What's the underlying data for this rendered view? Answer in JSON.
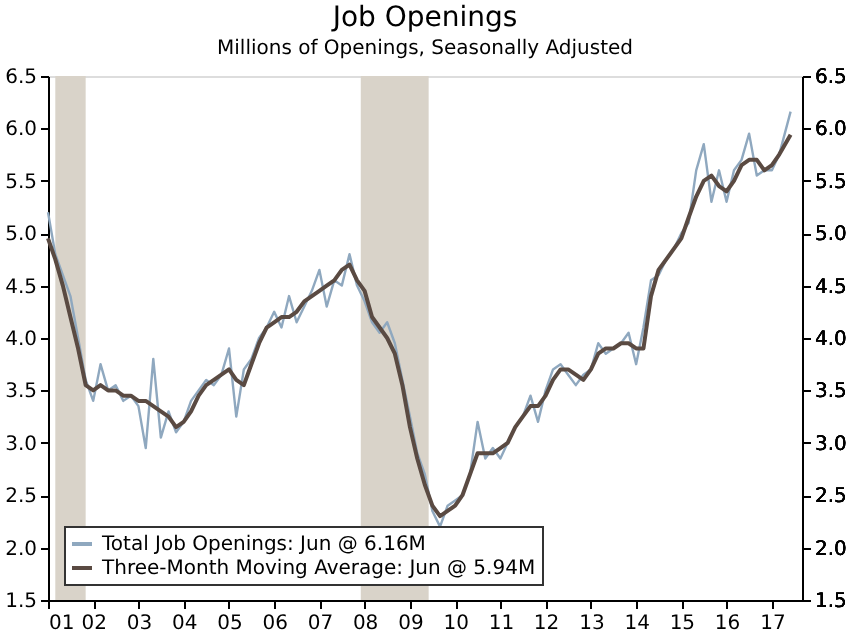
{
  "chart_data": {
    "type": "line",
    "title": "Job Openings",
    "subtitle": "Millions of Openings, Seasonally Adjusted",
    "x": [
      "2001-01",
      "2001-03",
      "2001-05",
      "2001-07",
      "2001-09",
      "2001-11",
      "2002-01",
      "2002-03",
      "2002-05",
      "2002-07",
      "2002-09",
      "2002-11",
      "2003-01",
      "2003-03",
      "2003-05",
      "2003-07",
      "2003-09",
      "2003-11",
      "2004-01",
      "2004-03",
      "2004-05",
      "2004-07",
      "2004-09",
      "2004-11",
      "2005-01",
      "2005-03",
      "2005-05",
      "2005-07",
      "2005-09",
      "2005-11",
      "2006-01",
      "2006-03",
      "2006-05",
      "2006-07",
      "2006-09",
      "2006-11",
      "2007-01",
      "2007-03",
      "2007-05",
      "2007-07",
      "2007-09",
      "2007-11",
      "2008-01",
      "2008-03",
      "2008-05",
      "2008-07",
      "2008-09",
      "2008-11",
      "2009-01",
      "2009-03",
      "2009-05",
      "2009-07",
      "2009-09",
      "2009-11",
      "2010-01",
      "2010-03",
      "2010-05",
      "2010-07",
      "2010-09",
      "2010-11",
      "2011-01",
      "2011-03",
      "2011-05",
      "2011-07",
      "2011-09",
      "2011-11",
      "2012-01",
      "2012-03",
      "2012-05",
      "2012-07",
      "2012-09",
      "2012-11",
      "2013-01",
      "2013-03",
      "2013-05",
      "2013-07",
      "2013-09",
      "2013-11",
      "2014-01",
      "2014-03",
      "2014-05",
      "2014-07",
      "2014-09",
      "2014-11",
      "2015-01",
      "2015-03",
      "2015-05",
      "2015-07",
      "2015-09",
      "2015-11",
      "2016-01",
      "2016-03",
      "2016-05",
      "2016-07",
      "2016-09",
      "2016-11",
      "2017-01",
      "2017-03",
      "2017-06"
    ],
    "series": [
      {
        "name": "Total Job Openings: Jun @ 6.16M",
        "color": "#8fa8bf",
        "values": [
          5.2,
          4.8,
          4.6,
          4.4,
          4.0,
          3.6,
          3.4,
          3.75,
          3.5,
          3.55,
          3.4,
          3.45,
          3.35,
          2.95,
          3.8,
          3.05,
          3.3,
          3.1,
          3.2,
          3.4,
          3.5,
          3.6,
          3.55,
          3.65,
          3.9,
          3.25,
          3.7,
          3.8,
          4.0,
          4.1,
          4.25,
          4.1,
          4.4,
          4.15,
          4.3,
          4.45,
          4.65,
          4.3,
          4.55,
          4.5,
          4.8,
          4.5,
          4.35,
          4.15,
          4.05,
          4.15,
          3.95,
          3.6,
          3.25,
          2.9,
          2.7,
          2.35,
          2.2,
          2.4,
          2.45,
          2.5,
          2.7,
          3.2,
          2.85,
          2.95,
          2.85,
          3.0,
          3.15,
          3.25,
          3.45,
          3.2,
          3.5,
          3.7,
          3.75,
          3.65,
          3.55,
          3.65,
          3.7,
          3.95,
          3.85,
          3.9,
          3.95,
          4.05,
          3.75,
          4.1,
          4.55,
          4.6,
          4.75,
          4.85,
          5.0,
          5.1,
          5.6,
          5.85,
          5.3,
          5.6,
          5.3,
          5.6,
          5.7,
          5.95,
          5.55,
          5.6,
          5.6,
          5.75,
          6.16
        ]
      },
      {
        "name": "Three-Month Moving Average: Jun @ 5.94M",
        "color": "#5a4a42",
        "values": [
          4.95,
          4.75,
          4.5,
          4.2,
          3.9,
          3.55,
          3.5,
          3.55,
          3.5,
          3.5,
          3.45,
          3.45,
          3.4,
          3.4,
          3.35,
          3.3,
          3.25,
          3.15,
          3.2,
          3.3,
          3.45,
          3.55,
          3.6,
          3.65,
          3.7,
          3.6,
          3.55,
          3.75,
          3.95,
          4.1,
          4.15,
          4.2,
          4.2,
          4.25,
          4.35,
          4.4,
          4.45,
          4.5,
          4.55,
          4.65,
          4.7,
          4.55,
          4.45,
          4.2,
          4.1,
          4.0,
          3.85,
          3.55,
          3.15,
          2.85,
          2.6,
          2.4,
          2.3,
          2.35,
          2.4,
          2.5,
          2.7,
          2.9,
          2.9,
          2.9,
          2.95,
          3.0,
          3.15,
          3.25,
          3.35,
          3.35,
          3.45,
          3.6,
          3.7,
          3.7,
          3.65,
          3.6,
          3.7,
          3.85,
          3.9,
          3.9,
          3.95,
          3.95,
          3.9,
          3.9,
          4.4,
          4.65,
          4.75,
          4.85,
          4.95,
          5.15,
          5.35,
          5.5,
          5.55,
          5.45,
          5.4,
          5.5,
          5.65,
          5.7,
          5.7,
          5.6,
          5.65,
          5.75,
          5.94
        ]
      }
    ],
    "xlim": [
      "2001-01",
      "2017-09"
    ],
    "xticks": [
      {
        "value": "2001-01",
        "label": "01"
      },
      {
        "value": "2002-01",
        "label": "02"
      },
      {
        "value": "2003-01",
        "label": "03"
      },
      {
        "value": "2004-01",
        "label": "04"
      },
      {
        "value": "2005-01",
        "label": "05"
      },
      {
        "value": "2006-01",
        "label": "06"
      },
      {
        "value": "2007-01",
        "label": "07"
      },
      {
        "value": "2008-01",
        "label": "08"
      },
      {
        "value": "2009-01",
        "label": "09"
      },
      {
        "value": "2010-01",
        "label": "10"
      },
      {
        "value": "2011-01",
        "label": "11"
      },
      {
        "value": "2012-01",
        "label": "12"
      },
      {
        "value": "2013-01",
        "label": "13"
      },
      {
        "value": "2014-01",
        "label": "14"
      },
      {
        "value": "2015-01",
        "label": "15"
      },
      {
        "value": "2016-01",
        "label": "16"
      },
      {
        "value": "2017-01",
        "label": "17"
      }
    ],
    "ylim": [
      1.5,
      6.5
    ],
    "yticks": [
      {
        "value": 1.5,
        "label": "1.5"
      },
      {
        "value": 2,
        "label": "2.0"
      },
      {
        "value": 2.5,
        "label": "2.5"
      },
      {
        "value": 3,
        "label": "3.0"
      },
      {
        "value": 3.5,
        "label": "3.5"
      },
      {
        "value": 4,
        "label": "4.0"
      },
      {
        "value": 4.5,
        "label": "4.5"
      },
      {
        "value": 5,
        "label": "5.0"
      },
      {
        "value": 5.5,
        "label": "5.5"
      },
      {
        "value": 6,
        "label": "6.0"
      },
      {
        "value": 6.5,
        "label": "6.5"
      }
    ],
    "y2lim": [
      1.5,
      6.5
    ],
    "y2ticks": [
      {
        "value": 1.5,
        "label": "1.5"
      },
      {
        "value": 2,
        "label": "2.0"
      },
      {
        "value": 2.5,
        "label": "2.5"
      },
      {
        "value": 3,
        "label": "3.0"
      },
      {
        "value": 3.5,
        "label": "3.5"
      },
      {
        "value": 4,
        "label": "4.0"
      },
      {
        "value": 4.5,
        "label": "4.5"
      },
      {
        "value": 5,
        "label": "5.0"
      },
      {
        "value": 5.5,
        "label": "5.5"
      },
      {
        "value": 6,
        "label": "6.0"
      },
      {
        "value": 6.5,
        "label": "6.5"
      }
    ],
    "bands": [
      {
        "axis": "x",
        "from": "2001-03",
        "to": "2001-11",
        "color": "#d9d3c9"
      },
      {
        "axis": "x",
        "from": "2007-12",
        "to": "2009-06",
        "color": "#d9d3c9"
      }
    ],
    "legend": "bottom left",
    "grid": false,
    "marker": "none",
    "line_style": "solid"
  }
}
